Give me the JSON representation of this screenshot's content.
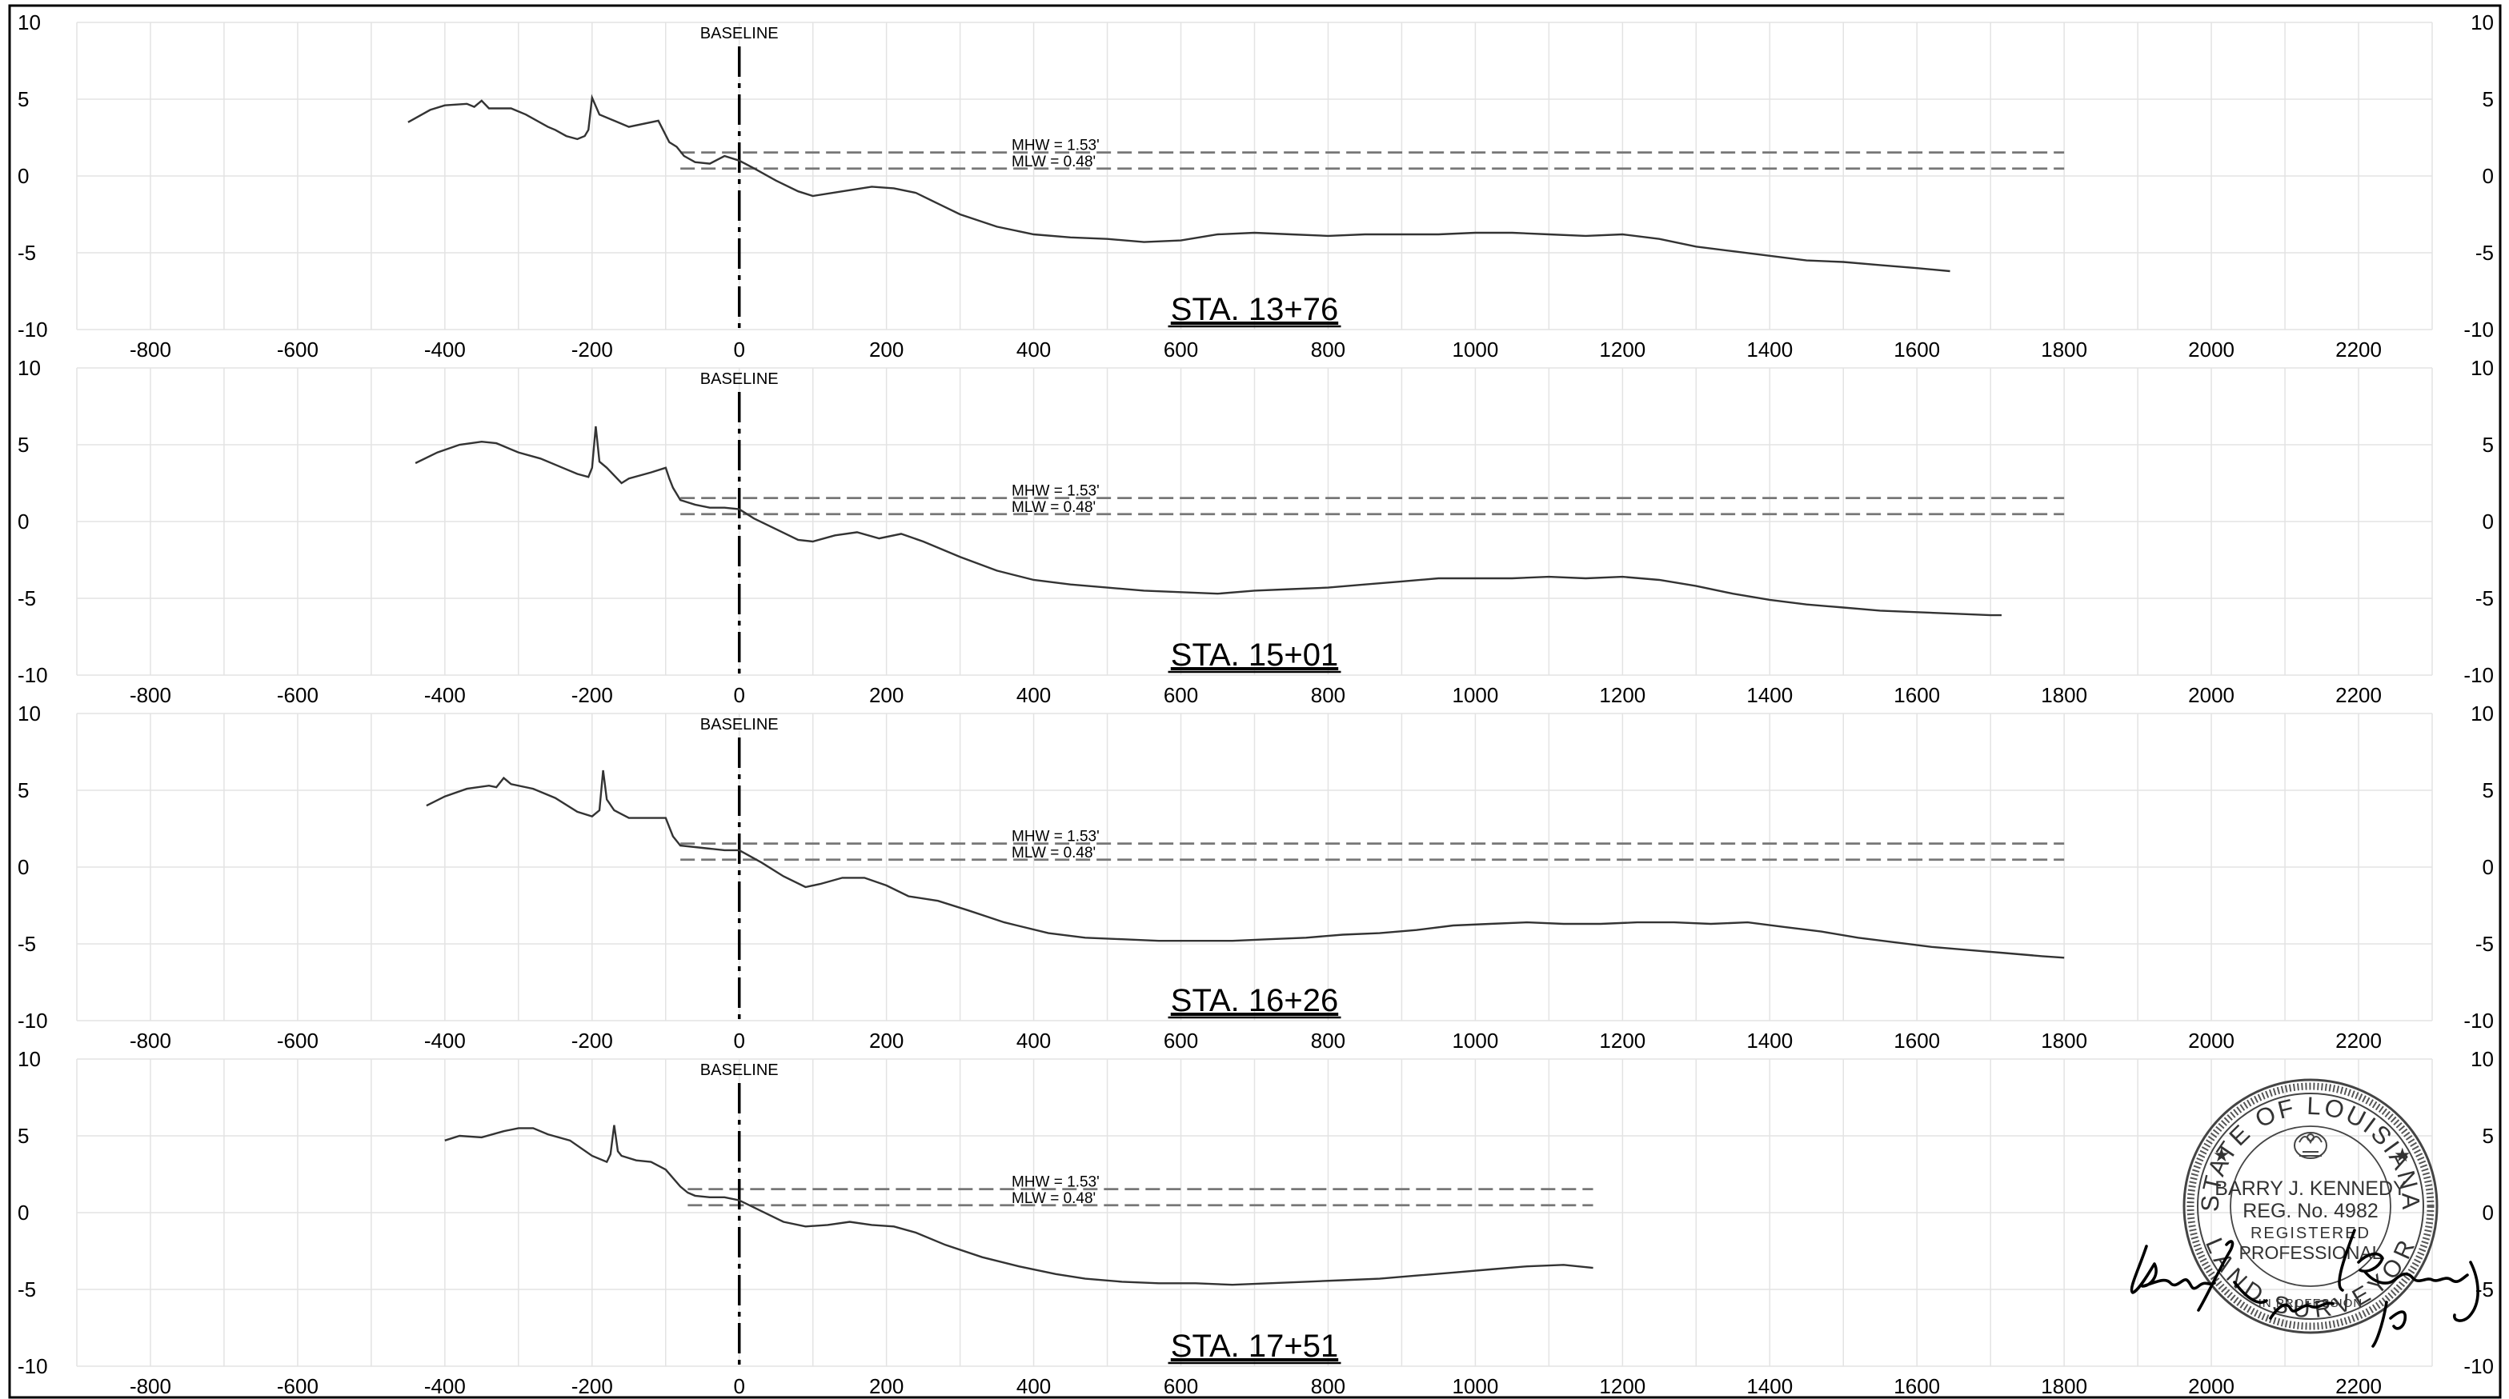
{
  "chart_data": [
    {
      "type": "line",
      "title": "STA. 13+76",
      "xlim": [
        -900,
        2300
      ],
      "ylim": [
        -10,
        10
      ],
      "x_ticks": [
        "-800",
        "-600",
        "-400",
        "-200",
        "0",
        "200",
        "400",
        "600",
        "800",
        "1000",
        "1200",
        "1400",
        "1600",
        "1800",
        "2000",
        "2200"
      ],
      "y_ticks": [
        "10",
        "5",
        "0",
        "-5",
        "-10"
      ],
      "baseline": {
        "label": "BASELINE",
        "x": 0
      },
      "water_levels": [
        {
          "label": "MHW = 1.53'",
          "y": 1.53,
          "x_start": -80,
          "x_end": 1800
        },
        {
          "label": "MLW = 0.48'",
          "y": 0.48,
          "x_start": -80,
          "x_end": 1800
        }
      ],
      "series": [
        {
          "x": [
            -450,
            -420,
            -400,
            -370,
            -360,
            -350,
            -340,
            -310,
            -290,
            -260,
            -250,
            -235,
            -220,
            -210,
            -205,
            -200,
            -190,
            -170,
            -150,
            -110,
            -95,
            -85,
            -75,
            -60,
            -40,
            -20,
            0,
            20,
            50,
            80,
            100,
            140,
            180,
            210,
            240,
            270,
            300,
            350,
            400,
            450,
            500,
            550,
            600,
            650,
            700,
            750,
            800,
            850,
            900,
            950,
            1000,
            1050,
            1100,
            1150,
            1200,
            1250,
            1300,
            1350,
            1400,
            1450,
            1500,
            1550,
            1600,
            1645
          ],
          "y": [
            3.5,
            4.3,
            4.6,
            4.7,
            4.5,
            4.9,
            4.4,
            4.4,
            4.0,
            3.2,
            3.0,
            2.6,
            2.4,
            2.6,
            3.0,
            5.1,
            4.0,
            3.6,
            3.2,
            3.6,
            2.2,
            1.9,
            1.3,
            0.9,
            0.8,
            1.3,
            1.0,
            0.5,
            -0.3,
            -1.0,
            -1.3,
            -1.0,
            -0.7,
            -0.8,
            -1.1,
            -1.8,
            -2.5,
            -3.3,
            -3.8,
            -4.0,
            -4.1,
            -4.3,
            -4.2,
            -3.8,
            -3.7,
            -3.8,
            -3.9,
            -3.8,
            -3.8,
            -3.8,
            -3.7,
            -3.7,
            -3.8,
            -3.9,
            -3.8,
            -4.1,
            -4.6,
            -4.9,
            -5.2,
            -5.5,
            -5.6,
            -5.8,
            -6.0,
            -6.2
          ]
        }
      ]
    },
    {
      "type": "line",
      "title": "STA. 15+01",
      "xlim": [
        -900,
        2300
      ],
      "ylim": [
        -10,
        10
      ],
      "x_ticks": [
        "-800",
        "-600",
        "-400",
        "-200",
        "0",
        "200",
        "400",
        "600",
        "800",
        "1000",
        "1200",
        "1400",
        "1600",
        "1800",
        "2000",
        "2200"
      ],
      "y_ticks": [
        "10",
        "5",
        "0",
        "-5",
        "-10"
      ],
      "baseline": {
        "label": "BASELINE",
        "x": 0
      },
      "water_levels": [
        {
          "label": "MHW = 1.53'",
          "y": 1.53,
          "x_start": -80,
          "x_end": 1800
        },
        {
          "label": "MLW = 0.48'",
          "y": 0.48,
          "x_start": -80,
          "x_end": 1800
        }
      ],
      "series": [
        {
          "x": [
            -440,
            -410,
            -380,
            -350,
            -330,
            -300,
            -270,
            -240,
            -220,
            -205,
            -200,
            -195,
            -190,
            -180,
            -160,
            -150,
            -120,
            -100,
            -95,
            -90,
            -80,
            -60,
            -40,
            -20,
            0,
            20,
            50,
            80,
            100,
            130,
            160,
            190,
            220,
            250,
            300,
            350,
            400,
            450,
            500,
            550,
            600,
            650,
            700,
            750,
            800,
            850,
            900,
            950,
            1000,
            1050,
            1100,
            1150,
            1200,
            1250,
            1300,
            1350,
            1400,
            1450,
            1500,
            1550,
            1600,
            1650,
            1700,
            1715
          ],
          "y": [
            3.8,
            4.5,
            5.0,
            5.2,
            5.1,
            4.5,
            4.1,
            3.5,
            3.1,
            2.9,
            3.5,
            6.2,
            3.9,
            3.5,
            2.5,
            2.8,
            3.2,
            3.5,
            2.8,
            2.2,
            1.4,
            1.1,
            0.9,
            0.9,
            0.8,
            0.2,
            -0.5,
            -1.2,
            -1.3,
            -0.9,
            -0.7,
            -1.1,
            -0.8,
            -1.3,
            -2.3,
            -3.2,
            -3.8,
            -4.1,
            -4.3,
            -4.5,
            -4.6,
            -4.7,
            -4.5,
            -4.4,
            -4.3,
            -4.1,
            -3.9,
            -3.7,
            -3.7,
            -3.7,
            -3.6,
            -3.7,
            -3.6,
            -3.8,
            -4.2,
            -4.7,
            -5.1,
            -5.4,
            -5.6,
            -5.8,
            -5.9,
            -6.0,
            -6.1,
            -6.1
          ]
        }
      ]
    },
    {
      "type": "line",
      "title": "STA. 16+26",
      "xlim": [
        -900,
        2300
      ],
      "ylim": [
        -10,
        10
      ],
      "x_ticks": [
        "-800",
        "-600",
        "-400",
        "-200",
        "0",
        "200",
        "400",
        "600",
        "800",
        "1000",
        "1200",
        "1400",
        "1600",
        "1800",
        "2000",
        "2200"
      ],
      "y_ticks": [
        "10",
        "5",
        "0",
        "-5",
        "-10"
      ],
      "baseline": {
        "label": "BASELINE",
        "x": 0
      },
      "water_levels": [
        {
          "label": "MHW = 1.53'",
          "y": 1.53,
          "x_start": -80,
          "x_end": 1800
        },
        {
          "label": "MLW = 0.48'",
          "y": 0.48,
          "x_start": -80,
          "x_end": 1800
        }
      ],
      "series": [
        {
          "x": [
            -425,
            -400,
            -370,
            -340,
            -330,
            -320,
            -310,
            -280,
            -250,
            -220,
            -200,
            -190,
            -185,
            -180,
            -170,
            -150,
            -120,
            -100,
            -95,
            -90,
            -80,
            -60,
            -40,
            -20,
            0,
            30,
            60,
            90,
            110,
            140,
            170,
            200,
            230,
            270,
            310,
            360,
            420,
            470,
            520,
            570,
            620,
            670,
            720,
            770,
            820,
            870,
            920,
            970,
            1020,
            1070,
            1120,
            1170,
            1220,
            1270,
            1320,
            1370,
            1420,
            1470,
            1520,
            1570,
            1620,
            1670,
            1720,
            1770,
            1800
          ],
          "y": [
            4.0,
            4.6,
            5.1,
            5.3,
            5.2,
            5.8,
            5.4,
            5.1,
            4.5,
            3.6,
            3.3,
            3.7,
            6.3,
            4.4,
            3.7,
            3.2,
            3.2,
            3.2,
            2.6,
            2.0,
            1.4,
            1.3,
            1.2,
            1.1,
            1.1,
            0.3,
            -0.6,
            -1.3,
            -1.1,
            -0.7,
            -0.7,
            -1.2,
            -1.9,
            -2.2,
            -2.8,
            -3.6,
            -4.3,
            -4.6,
            -4.7,
            -4.8,
            -4.8,
            -4.8,
            -4.7,
            -4.6,
            -4.4,
            -4.3,
            -4.1,
            -3.8,
            -3.7,
            -3.6,
            -3.7,
            -3.7,
            -3.6,
            -3.6,
            -3.7,
            -3.6,
            -3.9,
            -4.2,
            -4.6,
            -4.9,
            -5.2,
            -5.4,
            -5.6,
            -5.8,
            -5.9
          ]
        }
      ]
    },
    {
      "type": "line",
      "title": "STA. 17+51",
      "xlim": [
        -900,
        2300
      ],
      "ylim": [
        -10,
        10
      ],
      "x_ticks": [
        "-800",
        "-600",
        "-400",
        "-200",
        "0",
        "200",
        "400",
        "600",
        "800",
        "1000",
        "1200",
        "1400",
        "1600",
        "1800",
        "2000",
        "2200"
      ],
      "y_ticks": [
        "10",
        "5",
        "0",
        "-5",
        "-10"
      ],
      "baseline": {
        "label": "BASELINE",
        "x": 0
      },
      "water_levels": [
        {
          "label": "MHW = 1.53'",
          "y": 1.53,
          "x_start": -70,
          "x_end": 1160
        },
        {
          "label": "MLW = 0.48'",
          "y": 0.48,
          "x_start": -70,
          "x_end": 1160
        }
      ],
      "series": [
        {
          "x": [
            -400,
            -380,
            -350,
            -320,
            -300,
            -280,
            -260,
            -230,
            -200,
            -180,
            -175,
            -170,
            -165,
            -160,
            -140,
            -120,
            -100,
            -80,
            -70,
            -60,
            -40,
            -20,
            0,
            30,
            60,
            90,
            120,
            150,
            180,
            210,
            240,
            280,
            330,
            380,
            430,
            470,
            520,
            570,
            620,
            670,
            720,
            770,
            820,
            870,
            920,
            970,
            1020,
            1070,
            1120,
            1160
          ],
          "y": [
            4.7,
            5.0,
            4.9,
            5.3,
            5.5,
            5.5,
            5.1,
            4.7,
            3.7,
            3.3,
            3.8,
            5.7,
            4.0,
            3.7,
            3.4,
            3.3,
            2.8,
            1.7,
            1.3,
            1.1,
            1.0,
            1.0,
            0.8,
            0.1,
            -0.6,
            -0.9,
            -0.8,
            -0.6,
            -0.8,
            -0.9,
            -1.3,
            -2.1,
            -2.9,
            -3.5,
            -4.0,
            -4.3,
            -4.5,
            -4.6,
            -4.6,
            -4.7,
            -4.6,
            -4.5,
            -4.4,
            -4.3,
            -4.1,
            -3.9,
            -3.7,
            -3.5,
            -3.4,
            -3.6
          ]
        }
      ]
    }
  ],
  "seal": {
    "state": "STATE OF LOUISIANA",
    "name": "BARRY J. KENNEDY",
    "reg": "REG. No. 4982",
    "registered": "REGISTERED",
    "professional": "PROFESSIONAL",
    "surveyor": "LAND SURVEYOR",
    "in_profession": "IN PROFESSION"
  }
}
